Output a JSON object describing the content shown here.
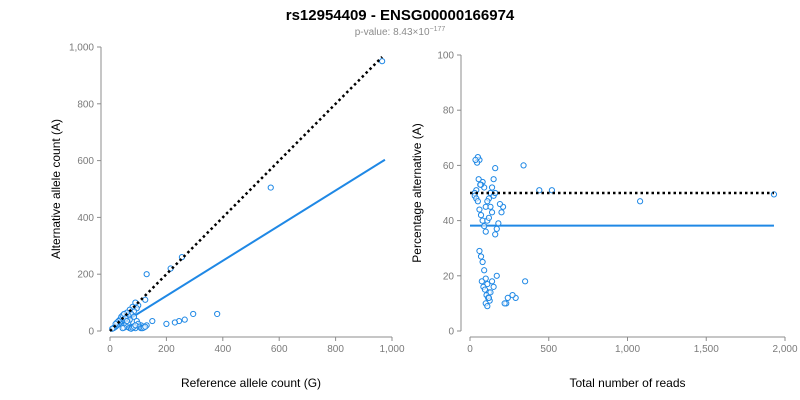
{
  "header": {
    "title": "rs12954409 - ENSG00000166974",
    "pvalue_prefix": "p-value: 8.43×10",
    "pvalue_exponent": "−177"
  },
  "colors": {
    "accent": "#1f88e5",
    "reference_line": "#000000",
    "axis": "#8c8c8c",
    "tick_text": "#7a7a7a",
    "subtitle": "#8c8c8c"
  },
  "chart_data": [
    {
      "type": "scatter",
      "xlabel": "Reference allele count (G)",
      "ylabel": "Alternative allele count (A)",
      "xlim": [
        0,
        1000
      ],
      "ylim": [
        0,
        1000
      ],
      "x_ticks": [
        0,
        200,
        400,
        600,
        800,
        1000
      ],
      "x_tick_labels": [
        "0",
        "200",
        "400",
        "600",
        "800",
        "1,000"
      ],
      "y_ticks": [
        0,
        200,
        400,
        600,
        800,
        1000
      ],
      "y_tick_labels": [
        "0",
        "200",
        "400",
        "600",
        "800",
        "1,000"
      ],
      "grid": false,
      "reference_line": {
        "style": "dotted",
        "x": [
          0,
          965
        ],
        "y": [
          0,
          965
        ]
      },
      "fit_line": {
        "style": "solid",
        "x": [
          0,
          975
        ],
        "y": [
          0,
          603
        ]
      },
      "points": {
        "x": [
          965,
          570,
          255,
          215,
          130,
          125,
          380,
          295,
          265,
          245,
          230,
          200,
          150,
          130,
          120,
          110,
          100,
          95,
          90,
          85,
          80,
          75,
          70,
          65,
          60,
          55,
          50,
          45,
          40,
          35,
          30,
          25,
          20,
          15,
          12,
          8,
          70,
          75,
          80,
          90,
          60,
          55,
          50,
          45,
          65,
          70,
          85,
          95,
          100,
          105,
          110,
          35,
          30,
          25,
          20,
          40,
          45,
          50,
          55,
          60,
          115,
          120,
          125,
          75,
          80,
          85,
          90
        ],
        "y": [
          950,
          505,
          260,
          220,
          200,
          110,
          60,
          60,
          40,
          35,
          30,
          25,
          35,
          20,
          15,
          20,
          90,
          80,
          100,
          70,
          85,
          60,
          75,
          55,
          65,
          50,
          40,
          45,
          35,
          30,
          25,
          20,
          15,
          12,
          10,
          8,
          10,
          12,
          15,
          10,
          15,
          20,
          12,
          10,
          30,
          40,
          50,
          35,
          25,
          15,
          10,
          40,
          35,
          30,
          25,
          50,
          55,
          60,
          45,
          35,
          10,
          12,
          15,
          8,
          12,
          15,
          20
        ]
      }
    },
    {
      "type": "scatter",
      "xlabel": "Total number of reads",
      "ylabel": "Percentage alternative (A)",
      "xlim": [
        0,
        2000
      ],
      "ylim": [
        0,
        100
      ],
      "x_ticks": [
        0,
        500,
        1000,
        1500,
        2000
      ],
      "x_tick_labels": [
        "0",
        "500",
        "1,000",
        "1,500",
        "2,000"
      ],
      "y_ticks": [
        0,
        20,
        40,
        60,
        80,
        100
      ],
      "y_tick_labels": [
        "0",
        "20",
        "40",
        "60",
        "80",
        "100"
      ],
      "grid": false,
      "reference_line": {
        "style": "dotted",
        "x": [
          0,
          1930
        ],
        "y": [
          50,
          50
        ]
      },
      "fit_line": {
        "style": "solid",
        "x": [
          0,
          1930
        ],
        "y": [
          38.2,
          38.2
        ]
      },
      "points": {
        "x": [
          1930,
          1080,
          520,
          440,
          340,
          290,
          270,
          230,
          210,
          190,
          170,
          160,
          150,
          140,
          130,
          120,
          110,
          100,
          90,
          80,
          70,
          60,
          50,
          40,
          30,
          30,
          40,
          50,
          60,
          70,
          80,
          90,
          100,
          110,
          120,
          130,
          140,
          150,
          160,
          60,
          70,
          80,
          90,
          100,
          110,
          120,
          75,
          85,
          95,
          105,
          115,
          125,
          65,
          55,
          45,
          35,
          100,
          110,
          120,
          130,
          140,
          150,
          160,
          170,
          180,
          200,
          220,
          240,
          350
        ],
        "y": [
          49.5,
          47,
          51,
          51,
          60,
          12,
          13,
          10,
          45,
          46,
          20,
          59,
          55,
          52,
          50,
          48,
          47,
          45,
          52,
          54,
          53,
          62,
          63,
          51,
          50,
          49,
          48,
          47,
          44,
          42,
          40,
          38,
          36,
          40,
          41,
          45,
          43,
          49,
          50,
          29,
          27,
          25,
          22,
          19,
          17,
          14,
          18,
          16,
          15,
          13,
          12,
          11,
          53,
          55,
          61,
          62,
          10,
          9,
          12,
          14,
          18,
          16,
          35,
          37,
          39,
          43,
          10,
          12,
          18
        ]
      }
    }
  ]
}
